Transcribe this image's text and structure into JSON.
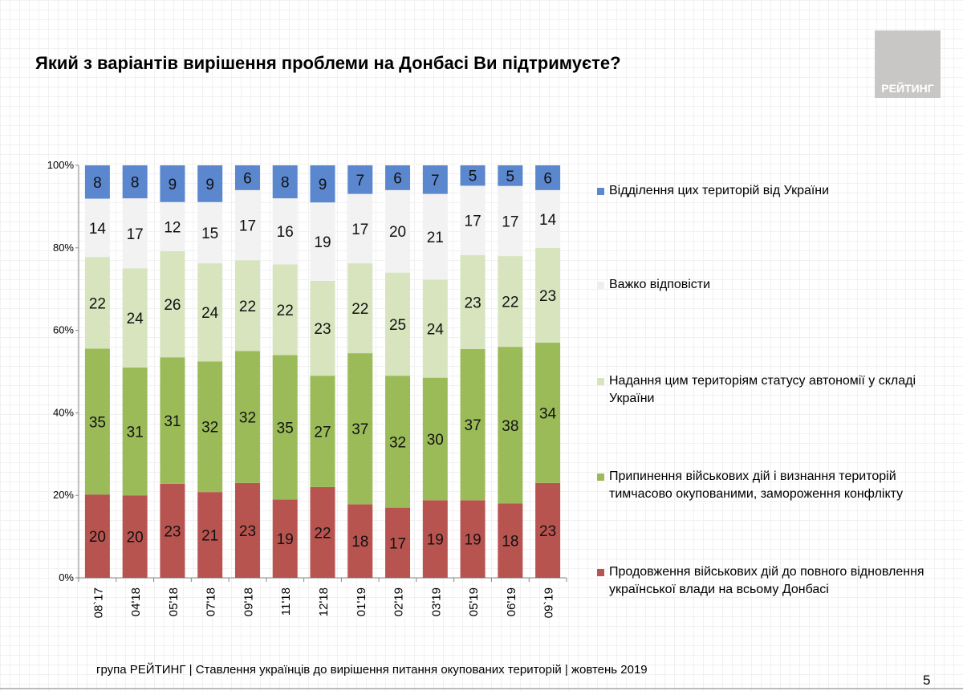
{
  "title": "Який з варіантів вирішення проблеми на Донбасі Ви підтримуєте?",
  "logo_text": "РЕЙТИНГ",
  "footer": "група РЕЙТИНГ | Ставлення українців до вирішення питання окупованих територій  | жовтень  2019",
  "page_number": "5",
  "chart_data": {
    "type": "bar",
    "stacked": true,
    "normalized_100": true,
    "categories": [
      "08`17",
      "04'18",
      "05'18",
      "07'18",
      "09'18",
      "11'18",
      "12'18",
      "01'19",
      "02'19",
      "03'19",
      "05'19",
      "06'19",
      "09`19"
    ],
    "yticks": [
      "0%",
      "20%",
      "40%",
      "60%",
      "80%",
      "100%"
    ],
    "ylim": [
      0,
      100
    ],
    "legend_position": "right",
    "series": [
      {
        "name": "Продовження військових дій до повного відновлення української влади на всьому Донбасі",
        "color": "#b85450",
        "values": [
          20,
          20,
          23,
          21,
          23,
          19,
          22,
          18,
          17,
          19,
          19,
          18,
          23
        ]
      },
      {
        "name": "Припинення військових дій і визнання територій тимчасово окупованими, замороження конфлікту",
        "color": "#9bbb59",
        "values": [
          35,
          31,
          31,
          32,
          32,
          35,
          27,
          37,
          32,
          30,
          37,
          38,
          34
        ]
      },
      {
        "name": "Надання цим територіям статусу автономії у складі України",
        "color": "#d7e4bd",
        "values": [
          22,
          24,
          26,
          24,
          22,
          22,
          23,
          22,
          25,
          24,
          23,
          22,
          23
        ]
      },
      {
        "name": "Важко відповісти",
        "color": "#f2f2f2",
        "values": [
          14,
          17,
          12,
          15,
          17,
          16,
          19,
          17,
          20,
          21,
          17,
          17,
          14
        ]
      },
      {
        "name": "Відділення цих територій від України",
        "color": "#5b87cf",
        "values": [
          8,
          8,
          9,
          9,
          6,
          8,
          9,
          7,
          6,
          7,
          5,
          5,
          6
        ]
      }
    ]
  }
}
